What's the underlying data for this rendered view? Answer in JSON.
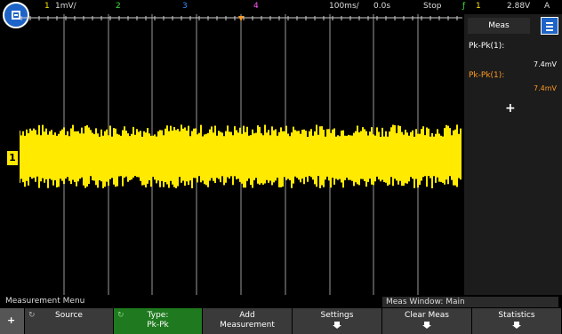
{
  "topbar": {
    "ch1_num": "1",
    "ch1_scale": "1mV/",
    "ch2_num": "2",
    "ch3_num": "3",
    "ch4_num": "4",
    "timebase": "100ms/",
    "delay": "0.0s",
    "trigger_mode": "Stop",
    "trigger_ch": "1",
    "trigger_level": "2.88V",
    "extra": "A"
  },
  "trace_color": "#ffea00",
  "channel_marker": "1",
  "meas_panel": {
    "tab_label": "Meas",
    "items": [
      {
        "label": "Pk-Pk(1):",
        "value": "7.4mV",
        "color": "#ffffff"
      },
      {
        "label": "Pk-Pk(1):",
        "value": "7.4mV",
        "color": "#ff9a1f"
      }
    ],
    "add_label": "+"
  },
  "status": {
    "left": "Measurement Menu",
    "right": "Meas Window: Main"
  },
  "softkeys": [
    {
      "line1": "Source",
      "line2": "",
      "active": false,
      "arrow": false
    },
    {
      "line1": "Type:",
      "line2": "Pk-Pk",
      "active": true,
      "arrow": false
    },
    {
      "line1": "Add",
      "line2": "Measurement",
      "active": false,
      "arrow": false
    },
    {
      "line1": "Settings",
      "line2": "",
      "active": false,
      "arrow": true
    },
    {
      "line1": "Clear Meas",
      "line2": "",
      "active": false,
      "arrow": true
    },
    {
      "line1": "Statistics",
      "line2": "",
      "active": false,
      "arrow": true
    }
  ]
}
